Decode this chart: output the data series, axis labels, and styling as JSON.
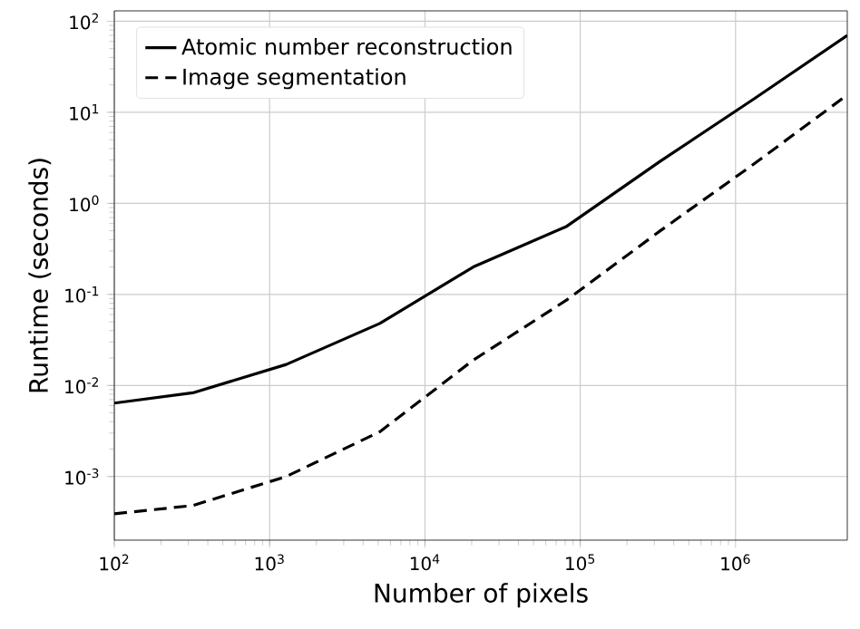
{
  "chart_data": {
    "type": "line",
    "xlabel": "Number of pixels",
    "ylabel": "Runtime (seconds)",
    "x": [
      100,
      320,
      1280,
      5120,
      20480,
      81920,
      327680,
      1310720,
      5242880
    ],
    "series": [
      {
        "name": "Atomic number reconstruction",
        "color": "#000000",
        "line_style": "solid",
        "values": [
          0.0064,
          0.0083,
          0.017,
          0.048,
          0.2,
          0.56,
          2.9,
          14,
          70
        ]
      },
      {
        "name": "Image segmentation",
        "color": "#000000",
        "line_style": "dashed",
        "values": [
          0.00039,
          0.00048,
          0.001,
          0.0031,
          0.019,
          0.087,
          0.5,
          2.7,
          15.5
        ]
      }
    ],
    "log": "xy",
    "xlim": [
      100,
      5242880
    ],
    "ylim": [
      0.0002,
      130
    ],
    "xticks": [
      {
        "value": 100,
        "label": "10$^{2}$"
      },
      {
        "value": 1000,
        "label": "10$^{3}$"
      },
      {
        "value": 10000,
        "label": "10$^{4}$"
      },
      {
        "value": 100000,
        "label": "10$^{5}$"
      },
      {
        "value": 1000000,
        "label": "10$^{6}$"
      }
    ],
    "yticks": [
      {
        "value": 0.001,
        "label": "10$^{-3}$"
      },
      {
        "value": 0.01,
        "label": "10$^{-2}$"
      },
      {
        "value": 0.1,
        "label": "10$^{-1}$"
      },
      {
        "value": 1,
        "label": "10$^{0}$"
      },
      {
        "value": 10,
        "label": "10$^{1}$"
      },
      {
        "value": 100,
        "label": "10$^{2}$"
      }
    ],
    "grid": true,
    "legend": "top left"
  }
}
